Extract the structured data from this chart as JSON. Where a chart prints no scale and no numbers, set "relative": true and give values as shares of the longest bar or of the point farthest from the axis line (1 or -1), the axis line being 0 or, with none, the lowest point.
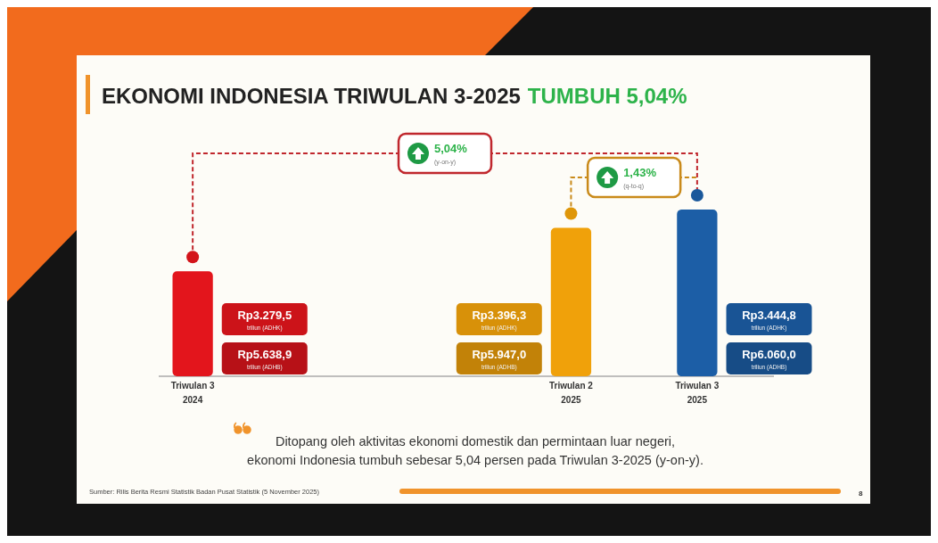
{
  "chart_data": {
    "type": "bar",
    "title": "EKONOMI INDONESIA TRIWULAN 3-2025",
    "subtitle": "TUMBUH 5,04%",
    "categories": [
      "Triwulan 3\n2024",
      null,
      null,
      "Triwulan 2\n2025",
      "Triwulan 3\n2025"
    ],
    "relative": true,
    "values": [
      0.63,
      null,
      null,
      0.89,
      1
    ],
    "colors": [
      "#e3151c",
      null,
      null,
      "#f0a10a",
      "#1c5ea6"
    ],
    "annotations": [
      "Rp3.279,5\ntriliun (ADHK)",
      "Rp5.638,9\ntriliun (ADHB)",
      "Rp3.396,3\ntriliun (ADHK)",
      "Rp5.947,0\ntriliun (ADHB)",
      "Rp3.444,8\ntriliun (ADHK)",
      "Rp6.060,0\ntriliun (ADHB)",
      "5,04%\n(y-on-y)",
      "1,43%\n(q-to-q)",
      "Ditopang oleh aktivitas ekonomi domestik dan permintaan luar negeri,\nekonomi Indonesia tumbuh sebesar 5,04 persen pada Triwulan 3-2025 (y-on-y).",
      "Sumber: Rilis Berita Resmi Statistik Badan Pusat Statistik (5 November 2025)",
      "8"
    ]
  }
}
